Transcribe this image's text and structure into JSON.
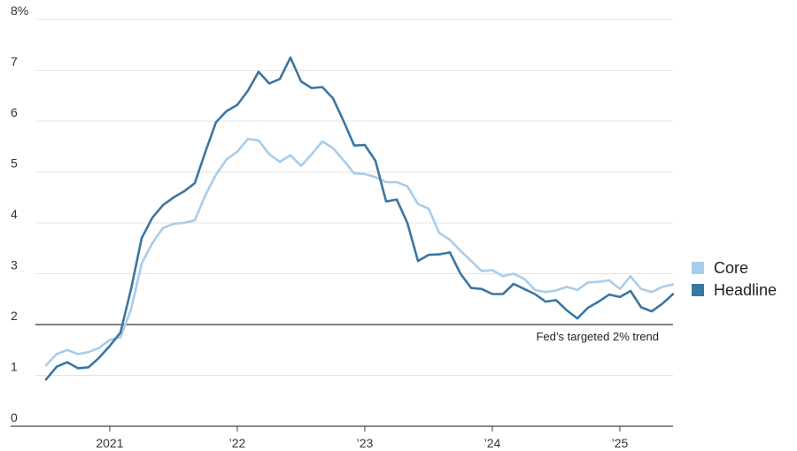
{
  "chart_data": {
    "type": "line",
    "x_start": "2020-07",
    "x_ticks": [
      {
        "label": "2021",
        "x": 2021.0
      },
      {
        "label": "’22",
        "x": 2022.0
      },
      {
        "label": "’23",
        "x": 2023.0
      },
      {
        "label": "’24",
        "x": 2024.0
      },
      {
        "label": "’25",
        "x": 2025.0
      }
    ],
    "y_ticks": [
      {
        "label": "0",
        "y": 0
      },
      {
        "label": "1",
        "y": 1
      },
      {
        "label": "2",
        "y": 2
      },
      {
        "label": "3",
        "y": 3
      },
      {
        "label": "4",
        "y": 4
      },
      {
        "label": "5",
        "y": 5
      },
      {
        "label": "6",
        "y": 6
      },
      {
        "label": "7",
        "y": 7
      },
      {
        "label": "8%",
        "y": 8
      }
    ],
    "ylim": [
      0,
      8
    ],
    "xlim": [
      "2020-06",
      "2025-06"
    ],
    "reference_line": {
      "y": 2,
      "label": "Fed’s targeted 2% trend"
    },
    "series": [
      {
        "name": "Core",
        "color": "#a9cde9",
        "values": [
          1.2,
          1.42,
          1.5,
          1.42,
          1.46,
          1.54,
          1.7,
          1.75,
          2.3,
          3.2,
          3.6,
          3.9,
          3.98,
          4.0,
          4.05,
          4.55,
          4.95,
          5.25,
          5.4,
          5.65,
          5.62,
          5.35,
          5.2,
          5.33,
          5.12,
          5.35,
          5.6,
          5.47,
          5.23,
          4.97,
          4.96,
          4.9,
          4.8,
          4.8,
          4.72,
          4.37,
          4.28,
          3.8,
          3.67,
          3.45,
          3.25,
          3.05,
          3.07,
          2.95,
          3.0,
          2.9,
          2.68,
          2.64,
          2.67,
          2.74,
          2.68,
          2.83,
          2.84,
          2.87,
          2.7,
          2.95,
          2.7,
          2.64,
          2.74,
          2.79
        ]
      },
      {
        "name": "Headline",
        "color": "#3a76a3",
        "values": [
          0.92,
          1.17,
          1.26,
          1.14,
          1.16,
          1.35,
          1.58,
          1.84,
          2.7,
          3.7,
          4.1,
          4.35,
          4.5,
          4.62,
          4.78,
          5.4,
          5.98,
          6.2,
          6.32,
          6.6,
          6.97,
          6.74,
          6.83,
          7.25,
          6.78,
          6.65,
          6.67,
          6.45,
          6.0,
          5.52,
          5.53,
          5.22,
          4.42,
          4.46,
          4.0,
          3.25,
          3.37,
          3.38,
          3.42,
          3.0,
          2.72,
          2.7,
          2.6,
          2.6,
          2.8,
          2.7,
          2.6,
          2.45,
          2.48,
          2.28,
          2.12,
          2.33,
          2.45,
          2.59,
          2.54,
          2.66,
          2.34,
          2.26,
          2.41,
          2.6
        ]
      }
    ]
  }
}
